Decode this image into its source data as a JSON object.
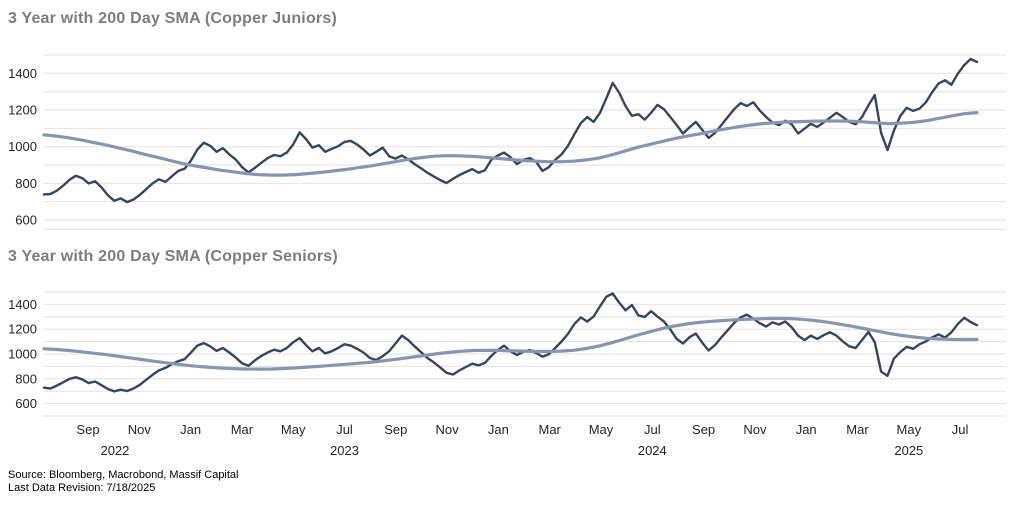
{
  "titles": {
    "juniors": "3 Year with 200 Day SMA (Copper Juniors)",
    "seniors": "3 Year with 200 Day SMA (Copper Seniors)"
  },
  "footer": {
    "source_line": "Source: Bloomberg, Macrobond, Massif Capital",
    "revision_line": "Last Data Revision: 7/18/2025"
  },
  "colors": {
    "price": "#37465e",
    "sma": "#8795b1",
    "grid": "#e2e2e2",
    "tick": "#262626",
    "title": "#7d7d7d"
  },
  "x_axis": {
    "month_ticks": [
      "Sep",
      "Nov",
      "Jan",
      "Mar",
      "May",
      "Jul",
      "Sep",
      "Nov",
      "Jan",
      "Mar",
      "May",
      "Jul",
      "Sep",
      "Nov",
      "Jan",
      "Mar",
      "May",
      "Jul"
    ],
    "year_ticks": [
      {
        "label": "2022",
        "month_offset": 1.05
      },
      {
        "label": "2023",
        "month_offset": 10
      },
      {
        "label": "2024",
        "month_offset": 22
      },
      {
        "label": "2025",
        "month_offset": 32
      }
    ],
    "start_label": "Sep",
    "end_label": "Jul"
  },
  "chart_data": [
    {
      "type": "line",
      "title": "3 Year with 200 Day SMA (Copper Juniors)",
      "ylim": [
        550,
        1500
      ],
      "grid_step": 100,
      "label_values": [
        600,
        800,
        1000,
        1200,
        1400
      ],
      "x_span": "Jul 2022 to Jul 2025",
      "series": [
        {
          "name": "Copper Juniors Index",
          "role": "price",
          "values": [
            740,
            742,
            760,
            788,
            820,
            842,
            828,
            800,
            812,
            778,
            735,
            705,
            718,
            698,
            712,
            738,
            768,
            800,
            822,
            808,
            838,
            868,
            880,
            925,
            985,
            1022,
            1005,
            972,
            992,
            958,
            930,
            888,
            860,
            885,
            912,
            938,
            955,
            948,
            968,
            1012,
            1078,
            1042,
            995,
            1008,
            972,
            988,
            1002,
            1025,
            1032,
            1012,
            985,
            952,
            972,
            995,
            948,
            935,
            952,
            930,
            905,
            882,
            858,
            838,
            818,
            802,
            825,
            845,
            862,
            878,
            858,
            872,
            928,
            952,
            968,
            942,
            905,
            928,
            938,
            918,
            868,
            888,
            928,
            958,
            1005,
            1068,
            1128,
            1162,
            1135,
            1185,
            1265,
            1348,
            1295,
            1222,
            1168,
            1178,
            1148,
            1185,
            1228,
            1205,
            1162,
            1118,
            1072,
            1105,
            1135,
            1092,
            1048,
            1075,
            1118,
            1162,
            1205,
            1238,
            1222,
            1242,
            1198,
            1162,
            1132,
            1118,
            1142,
            1122,
            1072,
            1098,
            1125,
            1108,
            1132,
            1158,
            1185,
            1162,
            1135,
            1122,
            1162,
            1225,
            1282,
            1075,
            982,
            1088,
            1168,
            1212,
            1195,
            1208,
            1242,
            1298,
            1345,
            1362,
            1338,
            1398,
            1445,
            1478,
            1462
          ]
        },
        {
          "name": "200 Day SMA",
          "role": "sma",
          "values": [
            1065,
            1058,
            1048,
            1036,
            1022,
            1008,
            992,
            976,
            958,
            942,
            925,
            908,
            895,
            884,
            872,
            863,
            854,
            848,
            845,
            845,
            848,
            854,
            860,
            868,
            876,
            886,
            896,
            908,
            920,
            932,
            941,
            948,
            951,
            950,
            947,
            942,
            936,
            930,
            925,
            921,
            918,
            918,
            921,
            928,
            938,
            955,
            975,
            995,
            1012,
            1028,
            1044,
            1058,
            1070,
            1084,
            1096,
            1108,
            1118,
            1126,
            1131,
            1135,
            1137,
            1139,
            1140,
            1140,
            1139,
            1136,
            1130,
            1126,
            1128,
            1133,
            1142,
            1155,
            1168,
            1180,
            1186
          ]
        }
      ]
    },
    {
      "type": "line",
      "title": "3 Year with 200 Day SMA (Copper Seniors)",
      "ylim": [
        500,
        1500
      ],
      "grid_step": 100,
      "label_values": [
        600,
        800,
        1000,
        1200,
        1400
      ],
      "x_span": "Jul 2022 to Jul 2025",
      "series": [
        {
          "name": "Copper Seniors Index",
          "role": "price",
          "values": [
            728,
            722,
            745,
            772,
            800,
            812,
            795,
            765,
            778,
            748,
            718,
            698,
            712,
            702,
            722,
            752,
            792,
            832,
            868,
            888,
            918,
            942,
            958,
            1012,
            1068,
            1088,
            1062,
            1025,
            1048,
            1012,
            972,
            925,
            905,
            948,
            985,
            1012,
            1035,
            1022,
            1048,
            1095,
            1128,
            1072,
            1022,
            1048,
            1005,
            1022,
            1048,
            1078,
            1068,
            1042,
            1012,
            968,
            952,
            982,
            1022,
            1085,
            1148,
            1112,
            1062,
            1015,
            968,
            932,
            892,
            848,
            835,
            868,
            895,
            922,
            908,
            928,
            985,
            1032,
            1068,
            1022,
            992,
            1018,
            1032,
            1008,
            978,
            998,
            1048,
            1102,
            1162,
            1242,
            1295,
            1262,
            1302,
            1385,
            1462,
            1488,
            1415,
            1352,
            1395,
            1312,
            1298,
            1345,
            1302,
            1262,
            1198,
            1122,
            1085,
            1135,
            1165,
            1092,
            1028,
            1072,
            1135,
            1192,
            1252,
            1295,
            1318,
            1285,
            1248,
            1222,
            1255,
            1238,
            1262,
            1215,
            1148,
            1112,
            1148,
            1122,
            1152,
            1175,
            1148,
            1102,
            1062,
            1048,
            1112,
            1178,
            1095,
            858,
            825,
            962,
            1015,
            1058,
            1042,
            1078,
            1102,
            1135,
            1158,
            1132,
            1175,
            1242,
            1292,
            1258,
            1232
          ]
        },
        {
          "name": "200 Day SMA",
          "role": "sma",
          "values": [
            1042,
            1036,
            1028,
            1018,
            1006,
            994,
            980,
            966,
            952,
            938,
            925,
            913,
            902,
            894,
            887,
            882,
            879,
            878,
            879,
            883,
            888,
            895,
            902,
            910,
            918,
            926,
            935,
            946,
            958,
            972,
            986,
            1000,
            1012,
            1022,
            1028,
            1030,
            1029,
            1026,
            1023,
            1021,
            1020,
            1023,
            1030,
            1044,
            1064,
            1090,
            1120,
            1150,
            1178,
            1204,
            1226,
            1243,
            1255,
            1264,
            1271,
            1277,
            1281,
            1285,
            1287,
            1286,
            1281,
            1272,
            1259,
            1243,
            1225,
            1206,
            1186,
            1167,
            1150,
            1137,
            1127,
            1121,
            1118,
            1117,
            1118
          ]
        }
      ]
    }
  ]
}
